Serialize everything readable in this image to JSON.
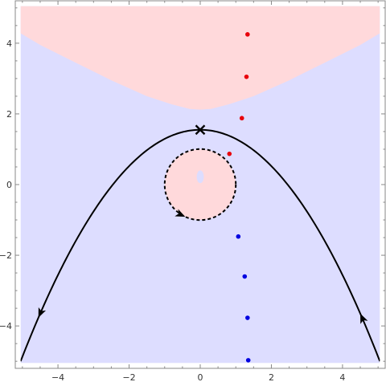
{
  "chart_data": {
    "type": "scatter",
    "title": "",
    "xlabel": "",
    "ylabel": "",
    "xlim": [
      -5.2,
      5.2
    ],
    "ylim": [
      -5.2,
      5.2
    ],
    "plot_range": {
      "x": [
        -5.05,
        5.05
      ],
      "y": [
        -5.05,
        5.05
      ]
    },
    "grid": false,
    "x_ticks": [
      {
        "value": -4,
        "label": "−4"
      },
      {
        "value": -2,
        "label": "−2"
      },
      {
        "value": 0,
        "label": "0"
      },
      {
        "value": 2,
        "label": "2"
      },
      {
        "value": 4,
        "label": "4"
      }
    ],
    "y_ticks": [
      {
        "value": 4,
        "label": "4"
      },
      {
        "value": 2,
        "label": "2"
      },
      {
        "value": 0,
        "label": "0"
      },
      {
        "value": -2,
        "label": "−2"
      },
      {
        "value": -4,
        "label": "−4"
      }
    ],
    "regions": {
      "upper_boundary": {
        "color": "#FFD9DB",
        "points": [
          [
            -5.05,
            4.28
          ],
          [
            -4.5,
            3.95
          ],
          [
            -3.5,
            3.45
          ],
          [
            -2.5,
            2.95
          ],
          [
            -1.5,
            2.5
          ],
          [
            -0.8,
            2.27
          ],
          [
            -0.3,
            2.14
          ],
          [
            0,
            2.12
          ],
          [
            0.3,
            2.14
          ],
          [
            0.8,
            2.27
          ],
          [
            1.5,
            2.5
          ],
          [
            2.5,
            2.95
          ],
          [
            3.5,
            3.45
          ],
          [
            4.5,
            3.95
          ],
          [
            5.05,
            4.28
          ]
        ]
      },
      "lower_color": "#DDDDFF",
      "disk": {
        "center": [
          0,
          0
        ],
        "radius": 1.0,
        "color": "#FFD9DB"
      },
      "inner_spot": {
        "center": [
          0,
          0.22
        ],
        "rx": 0.1,
        "ry": 0.18,
        "color": "#DDDDFF"
      }
    },
    "series": [
      {
        "kind": "parabola",
        "color": "#000000",
        "style": "solid",
        "vertex": [
          0,
          1.55
        ],
        "points": [
          [
            -5.05,
            -5.0
          ],
          [
            -4.5,
            -3.76
          ],
          [
            -4.0,
            -2.72
          ],
          [
            -3.5,
            -1.78
          ],
          [
            -3.0,
            -0.95
          ],
          [
            -2.5,
            -0.22
          ],
          [
            -2.0,
            0.41
          ],
          [
            -1.5,
            0.91
          ],
          [
            -1.0,
            1.29
          ],
          [
            -0.5,
            1.49
          ],
          [
            0,
            1.55
          ],
          [
            0.5,
            1.49
          ],
          [
            1.0,
            1.29
          ],
          [
            1.5,
            0.91
          ],
          [
            2.0,
            0.41
          ],
          [
            2.5,
            -0.22
          ],
          [
            3.0,
            -0.95
          ],
          [
            3.5,
            -1.78
          ],
          [
            4.0,
            -2.72
          ],
          [
            4.5,
            -3.76
          ],
          [
            5.05,
            -5.0
          ]
        ],
        "arrows": [
          {
            "x": -4.55,
            "direction": "down-left"
          },
          {
            "x": 4.5,
            "direction": "up-left"
          }
        ]
      },
      {
        "kind": "circle",
        "color": "#000000",
        "style": "dashed",
        "center": [
          0,
          0
        ],
        "radius": 1.0,
        "arrow": {
          "angle_deg": 245,
          "direction": "counterclockwise"
        }
      },
      {
        "kind": "points",
        "color": "#E8000B",
        "values": [
          [
            1.33,
            4.25
          ],
          [
            1.3,
            3.05
          ],
          [
            1.17,
            1.88
          ],
          [
            0.82,
            0.87
          ]
        ]
      },
      {
        "kind": "points",
        "color": "#0000E0",
        "values": [
          [
            1.07,
            -1.47
          ],
          [
            1.25,
            -2.6
          ],
          [
            1.33,
            -3.77
          ],
          [
            1.35,
            -4.97
          ]
        ]
      },
      {
        "kind": "marker",
        "shape": "cross",
        "color": "#000000",
        "values": [
          [
            0,
            1.55
          ]
        ]
      }
    ]
  }
}
